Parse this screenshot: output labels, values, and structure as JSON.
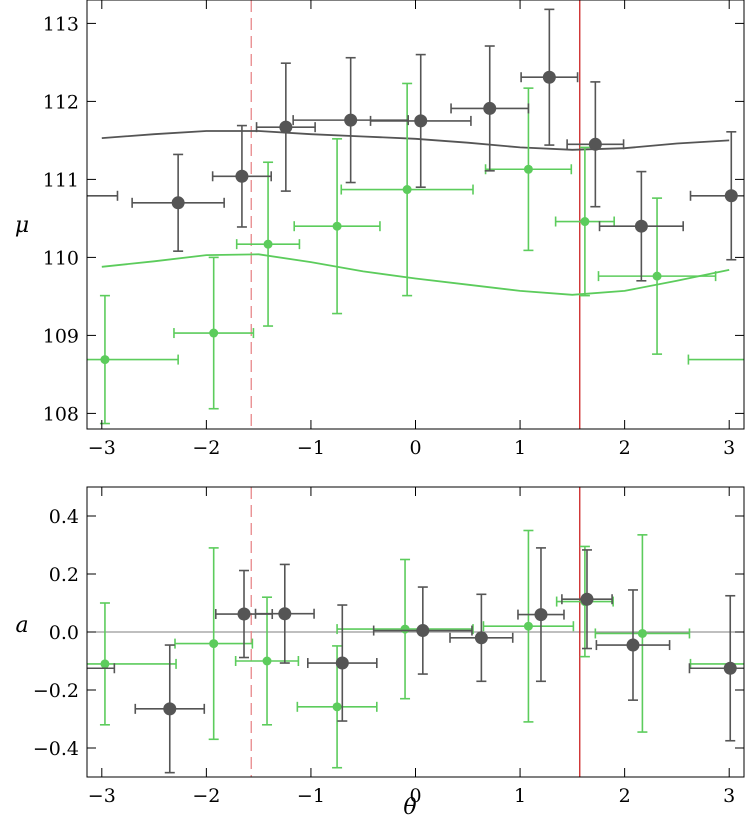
{
  "chart_data": [
    {
      "type": "scatter",
      "panel": "top",
      "xlabel": "",
      "ylabel": "μ",
      "xlim": [
        -3.14159,
        3.14159
      ],
      "ylim": [
        107.8,
        113.3
      ],
      "xticks": [
        -3,
        -2,
        -1,
        0,
        1,
        2,
        3
      ],
      "xtick_labels": [
        "−3",
        "−2",
        "−1",
        "0",
        "1",
        "2",
        "3"
      ],
      "yticks": [
        108,
        109,
        110,
        111,
        112,
        113
      ],
      "ytick_labels": [
        "108",
        "109",
        "110",
        "111",
        "112",
        "113"
      ],
      "vlines": [
        {
          "x": -1.5708,
          "style": "dashed",
          "color": "#e8888a"
        },
        {
          "x": 1.5708,
          "style": "solid",
          "color": "#cc2222"
        }
      ],
      "series": [
        {
          "name": "dark",
          "color": "#555555",
          "points": [
            {
              "x": -2.27,
              "y": 110.7,
              "xerr": 0.44,
              "yerr": 0.62
            },
            {
              "x": -1.66,
              "y": 111.04,
              "xerr": 0.28,
              "yerr": 0.65
            },
            {
              "x": -1.24,
              "y": 111.67,
              "xerr": 0.28,
              "yerr": 0.82
            },
            {
              "x": -0.62,
              "y": 111.76,
              "xerr": 0.55,
              "yerr": 0.8
            },
            {
              "x": 0.05,
              "y": 111.75,
              "xerr": 0.48,
              "yerr": 0.85
            },
            {
              "x": 0.71,
              "y": 111.91,
              "xerr": 0.37,
              "yerr": 0.8
            },
            {
              "x": 1.28,
              "y": 112.31,
              "xerr": 0.27,
              "yerr": 0.87
            },
            {
              "x": 1.72,
              "y": 111.45,
              "xerr": 0.27,
              "yerr": 0.8
            },
            {
              "x": 2.16,
              "y": 110.4,
              "xerr": 0.4,
              "yerr": 0.7
            },
            {
              "x": 3.02,
              "y": 110.79,
              "xerr": 0.39,
              "yerr": 0.82
            },
            {
              "x": -3.24,
              "y": 110.79,
              "xerr": 0.39,
              "yerr": 0.82
            }
          ],
          "curve": {
            "x": [
              -3.0,
              -2.5,
              -2.0,
              -1.5,
              -1.0,
              -0.5,
              0.0,
              0.5,
              1.0,
              1.5,
              2.0,
              2.5,
              3.0
            ],
            "y": [
              111.53,
              111.58,
              111.62,
              111.62,
              111.58,
              111.55,
              111.52,
              111.47,
              111.41,
              111.38,
              111.4,
              111.46,
              111.5
            ]
          }
        },
        {
          "name": "green",
          "color": "#5ccc5c",
          "points": [
            {
              "x": -2.97,
              "y": 108.69,
              "xerr": 0.7,
              "yerr": 0.82
            },
            {
              "x": -1.93,
              "y": 109.03,
              "xerr": 0.38,
              "yerr": 0.97
            },
            {
              "x": -1.41,
              "y": 110.17,
              "xerr": 0.3,
              "yerr": 1.05
            },
            {
              "x": -0.75,
              "y": 110.4,
              "xerr": 0.41,
              "yerr": 1.12
            },
            {
              "x": -0.08,
              "y": 110.87,
              "xerr": 0.63,
              "yerr": 1.36
            },
            {
              "x": 1.08,
              "y": 111.13,
              "xerr": 0.41,
              "yerr": 1.04
            },
            {
              "x": 1.62,
              "y": 110.46,
              "xerr": 0.28,
              "yerr": 0.95
            },
            {
              "x": 2.31,
              "y": 109.76,
              "xerr": 0.56,
              "yerr": 1.0
            },
            {
              "x": 3.31,
              "y": 108.69,
              "xerr": 0.7,
              "yerr": 0.82
            }
          ],
          "curve": {
            "x": [
              -3.0,
              -2.5,
              -2.0,
              -1.5,
              -1.0,
              -0.5,
              0.0,
              0.5,
              1.0,
              1.5,
              2.0,
              2.5,
              3.0
            ],
            "y": [
              109.88,
              109.95,
              110.03,
              110.04,
              109.94,
              109.82,
              109.73,
              109.65,
              109.57,
              109.52,
              109.57,
              109.7,
              109.84
            ]
          }
        }
      ]
    },
    {
      "type": "scatter",
      "panel": "bottom",
      "xlabel": "θ",
      "ylabel": "a",
      "xlim": [
        -3.14159,
        3.14159
      ],
      "ylim": [
        -0.5,
        0.5
      ],
      "xticks": [
        -3,
        -2,
        -1,
        0,
        1,
        2,
        3
      ],
      "xtick_labels": [
        "−3",
        "−2",
        "−1",
        "0",
        "1",
        "2",
        "3"
      ],
      "yticks": [
        -0.4,
        -0.2,
        0.0,
        0.2,
        0.4
      ],
      "ytick_labels": [
        "−0.4",
        "−0.2",
        "0.0",
        "0.2",
        "0.4"
      ],
      "hline": 0.0,
      "vlines": [
        {
          "x": -1.5708,
          "style": "dashed",
          "color": "#e8888a"
        },
        {
          "x": 1.5708,
          "style": "solid",
          "color": "#cc2222"
        }
      ],
      "series": [
        {
          "name": "dark",
          "color": "#555555",
          "points": [
            {
              "x": -2.35,
              "y": -0.265,
              "xerr": 0.33,
              "yerr": 0.22
            },
            {
              "x": -1.64,
              "y": 0.062,
              "xerr": 0.27,
              "yerr": 0.15
            },
            {
              "x": -1.25,
              "y": 0.063,
              "xerr": 0.28,
              "yerr": 0.17
            },
            {
              "x": -0.7,
              "y": -0.107,
              "xerr": 0.33,
              "yerr": 0.2
            },
            {
              "x": 0.07,
              "y": 0.005,
              "xerr": 0.47,
              "yerr": 0.15
            },
            {
              "x": 0.63,
              "y": -0.02,
              "xerr": 0.3,
              "yerr": 0.15
            },
            {
              "x": 1.2,
              "y": 0.06,
              "xerr": 0.22,
              "yerr": 0.23
            },
            {
              "x": 1.64,
              "y": 0.113,
              "xerr": 0.24,
              "yerr": 0.17
            },
            {
              "x": 2.08,
              "y": -0.045,
              "xerr": 0.35,
              "yerr": 0.19
            },
            {
              "x": 3.01,
              "y": -0.125,
              "xerr": 0.39,
              "yerr": 0.25
            },
            {
              "x": -3.27,
              "y": -0.125,
              "xerr": 0.39,
              "yerr": 0.25
            }
          ]
        },
        {
          "name": "green",
          "color": "#5ccc5c",
          "points": [
            {
              "x": -2.97,
              "y": -0.11,
              "xerr": 0.68,
              "yerr": 0.21
            },
            {
              "x": -1.93,
              "y": -0.04,
              "xerr": 0.37,
              "yerr": 0.33
            },
            {
              "x": -1.42,
              "y": -0.1,
              "xerr": 0.3,
              "yerr": 0.22
            },
            {
              "x": -0.75,
              "y": -0.258,
              "xerr": 0.38,
              "yerr": 0.21
            },
            {
              "x": -0.1,
              "y": 0.01,
              "xerr": 0.65,
              "yerr": 0.24
            },
            {
              "x": 1.08,
              "y": 0.02,
              "xerr": 0.43,
              "yerr": 0.33
            },
            {
              "x": 1.62,
              "y": 0.105,
              "xerr": 0.27,
              "yerr": 0.19
            },
            {
              "x": 2.17,
              "y": -0.005,
              "xerr": 0.45,
              "yerr": 0.34
            },
            {
              "x": 3.31,
              "y": -0.11,
              "xerr": 0.68,
              "yerr": 0.21
            }
          ]
        }
      ]
    }
  ]
}
